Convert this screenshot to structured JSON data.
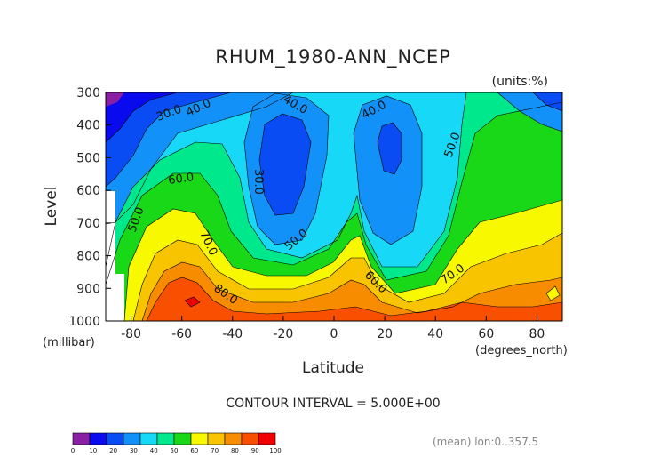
{
  "chart_data": {
    "type": "heatmap",
    "title": "RHUM_1980-ANN_NCEP",
    "units_label": "(units:%)",
    "xlabel": "Latitude",
    "x_units": "(degrees_north)",
    "ylabel": "Level",
    "y_units": "(millibar)",
    "xlim": [
      -90,
      90
    ],
    "ylim": [
      1000,
      300
    ],
    "x_ticks": [
      "-80",
      "-60",
      "-40",
      "-20",
      "0",
      "20",
      "40",
      "60",
      "80"
    ],
    "y_ticks": [
      "300",
      "400",
      "500",
      "600",
      "700",
      "800",
      "900",
      "1000"
    ],
    "contour_interval_text": "CONTOUR INTERVAL = 5.000E+00",
    "contour_labels": [
      "30.0",
      "40.0",
      "40.0",
      "40.0",
      "30.0",
      "60.0",
      "50.0",
      "50.0",
      "50.0",
      "70.0",
      "60.0",
      "70.0",
      "80.0"
    ],
    "colorbar": {
      "ticks": [
        "0",
        "10",
        "20",
        "30",
        "40",
        "50",
        "60",
        "70",
        "80",
        "90",
        "100"
      ],
      "colors": [
        "#8b1fa3",
        "#0a0aee",
        "#0a4cf4",
        "#1292f8",
        "#18d8f8",
        "#00e88c",
        "#18d818",
        "#f8f800",
        "#f8c400",
        "#f88c00",
        "#f85000",
        "#f00000"
      ]
    },
    "footer_note": "(mean) lon:0..357.5",
    "levels": [
      {
        "value": 10,
        "color": "#0a0aee"
      },
      {
        "value": 20,
        "color": "#0a4cf4"
      },
      {
        "value": 30,
        "color": "#1292f8"
      },
      {
        "value": 40,
        "color": "#18d8f8"
      },
      {
        "value": 50,
        "color": "#00e88c"
      },
      {
        "value": 60,
        "color": "#18d818"
      },
      {
        "value": 70,
        "color": "#f8f800"
      },
      {
        "value": 80,
        "color": "#f8c400"
      },
      {
        "value": 90,
        "color": "#f88c00"
      }
    ]
  }
}
